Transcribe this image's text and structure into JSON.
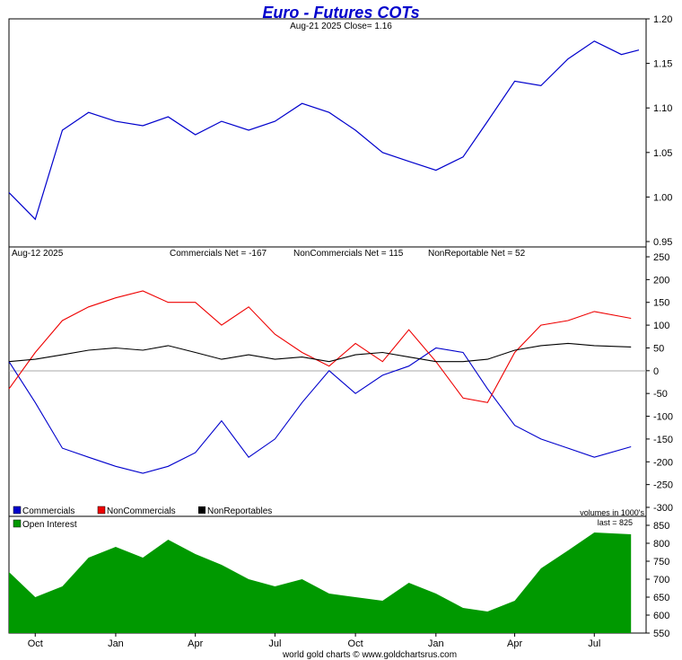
{
  "header": {
    "title": "Euro - Futures COTs",
    "subtitle": "Aug-21  2025   Close= 1.16"
  },
  "middle_header": {
    "date": "Aug-12  2025",
    "commercials": "Commercials Net = -167",
    "noncommercials": "NonCommercials Net = 115",
    "nonreportable": "NonReportable Net = 52"
  },
  "legend": {
    "commercials": "Commercials",
    "noncommercials": "NonCommercials",
    "nonreportables": "NonReportables",
    "volumes_note": "volumes in 1000's",
    "open_interest": "Open Interest",
    "last_oi": "last = 825"
  },
  "footer": "world gold charts © www.goldchartsrus.com",
  "colors": {
    "price": "#0000cc",
    "commercials": "#0000cc",
    "noncommercials": "#ee0000",
    "nonreportables": "#000000",
    "open_interest": "#009900",
    "title": "#0000cc"
  },
  "chart_data": [
    {
      "type": "line",
      "name": "price",
      "ylim": [
        0.95,
        1.2
      ],
      "yticks": [
        "1.20",
        "1.15",
        "1.10",
        "1.05",
        "1.00",
        "0.95"
      ],
      "ytick_values": [
        1.2,
        1.15,
        1.1,
        1.05,
        1.0,
        0.95
      ],
      "xticks": [
        "Oct",
        "Jan",
        "Apr",
        "Jul",
        "Oct",
        "Jan",
        "Apr",
        "Jul"
      ],
      "x": [
        "2023-09-01",
        "2023-10-01",
        "2023-11-01",
        "2023-12-01",
        "2024-01-01",
        "2024-02-01",
        "2024-03-01",
        "2024-04-01",
        "2024-05-01",
        "2024-06-01",
        "2024-07-01",
        "2024-08-01",
        "2024-09-01",
        "2024-10-01",
        "2024-11-01",
        "2024-12-01",
        "2025-01-01",
        "2025-02-01",
        "2025-03-01",
        "2025-04-01",
        "2025-05-01",
        "2025-06-01",
        "2025-07-01",
        "2025-08-01",
        "2025-08-21"
      ],
      "values": [
        1.005,
        0.975,
        1.075,
        1.095,
        1.085,
        1.08,
        1.09,
        1.07,
        1.085,
        1.075,
        1.085,
        1.105,
        1.095,
        1.075,
        1.05,
        1.04,
        1.03,
        1.045,
        1.085,
        1.13,
        1.125,
        1.155,
        1.175,
        1.16,
        1.165
      ]
    },
    {
      "type": "line",
      "name": "net_positions",
      "ylim": [
        -300,
        250
      ],
      "yticks": [
        "250",
        "200",
        "150",
        "100",
        "50",
        "0",
        "-50",
        "-100",
        "-150",
        "-200",
        "-250",
        "-300"
      ],
      "ytick_values": [
        250,
        200,
        150,
        100,
        50,
        0,
        -50,
        -100,
        -150,
        -200,
        -250,
        -300
      ],
      "x": [
        "2023-09-01",
        "2023-10-01",
        "2023-11-01",
        "2023-12-01",
        "2024-01-01",
        "2024-02-01",
        "2024-03-01",
        "2024-04-01",
        "2024-05-01",
        "2024-06-01",
        "2024-07-01",
        "2024-08-01",
        "2024-09-01",
        "2024-10-01",
        "2024-11-01",
        "2024-12-01",
        "2025-01-01",
        "2025-02-01",
        "2025-03-01",
        "2025-04-01",
        "2025-05-01",
        "2025-06-01",
        "2025-07-01",
        "2025-08-12"
      ],
      "series": [
        {
          "name": "Commercials",
          "values": [
            20,
            -70,
            -170,
            -190,
            -210,
            -225,
            -210,
            -180,
            -110,
            -190,
            -150,
            -70,
            0,
            -50,
            -10,
            10,
            50,
            40,
            -40,
            -120,
            -150,
            -170,
            -190,
            -167
          ]
        },
        {
          "name": "NonCommercials",
          "values": [
            -40,
            40,
            110,
            140,
            160,
            175,
            150,
            150,
            100,
            140,
            80,
            40,
            10,
            60,
            20,
            90,
            20,
            -60,
            -70,
            40,
            100,
            110,
            130,
            115
          ]
        },
        {
          "name": "NonReportables",
          "values": [
            20,
            25,
            35,
            45,
            50,
            45,
            55,
            40,
            25,
            35,
            25,
            30,
            20,
            35,
            40,
            30,
            20,
            20,
            25,
            45,
            55,
            60,
            55,
            52
          ]
        }
      ]
    },
    {
      "type": "area",
      "name": "Open Interest",
      "ylim": [
        550,
        850
      ],
      "yticks": [
        "850",
        "800",
        "750",
        "700",
        "650",
        "600",
        "550"
      ],
      "ytick_values": [
        850,
        800,
        750,
        700,
        650,
        600,
        550
      ],
      "x": [
        "2023-09-01",
        "2023-10-01",
        "2023-11-01",
        "2023-12-01",
        "2024-01-01",
        "2024-02-01",
        "2024-03-01",
        "2024-04-01",
        "2024-05-01",
        "2024-06-01",
        "2024-07-01",
        "2024-08-01",
        "2024-09-01",
        "2024-10-01",
        "2024-11-01",
        "2024-12-01",
        "2025-01-01",
        "2025-02-01",
        "2025-03-01",
        "2025-04-01",
        "2025-05-01",
        "2025-06-01",
        "2025-07-01",
        "2025-08-12"
      ],
      "values": [
        720,
        650,
        680,
        760,
        790,
        760,
        810,
        770,
        740,
        700,
        680,
        700,
        660,
        650,
        640,
        690,
        660,
        620,
        610,
        640,
        730,
        780,
        830,
        825
      ]
    }
  ]
}
